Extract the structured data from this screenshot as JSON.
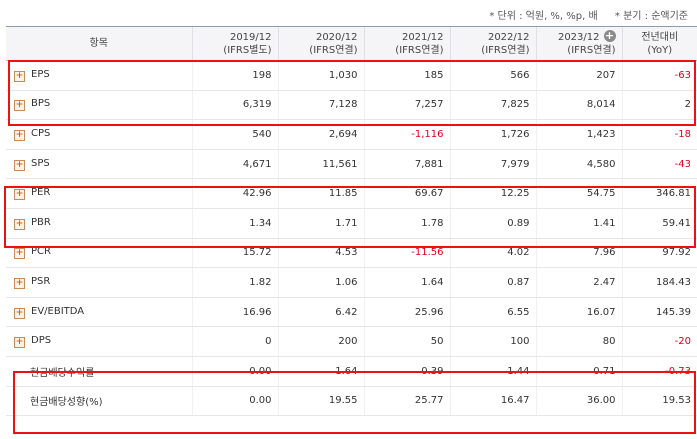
{
  "notes": {
    "unit": "* 단위 : 억원, %, %p, 배",
    "period": "* 분기 : 순액기준"
  },
  "header": {
    "item": "항목",
    "cols": [
      {
        "year": "2019/12",
        "basis": "(IFRS별도)"
      },
      {
        "year": "2020/12",
        "basis": "(IFRS연결)"
      },
      {
        "year": "2021/12",
        "basis": "(IFRS연결)"
      },
      {
        "year": "2022/12",
        "basis": "(IFRS연결)"
      },
      {
        "year": "2023/12",
        "basis": "(IFRS연결)"
      }
    ],
    "yoy_line1": "전년대비",
    "yoy_line2": "(YoY)",
    "expand_icon": "circle-plus-icon"
  },
  "rows": [
    {
      "label": "EPS",
      "expandable": true,
      "values": [
        "198",
        "1,030",
        "185",
        "566",
        "207"
      ],
      "yoy": "-63"
    },
    {
      "label": "BPS",
      "expandable": true,
      "values": [
        "6,319",
        "7,128",
        "7,257",
        "7,825",
        "8,014"
      ],
      "yoy": "2"
    },
    {
      "label": "CPS",
      "expandable": true,
      "values": [
        "540",
        "2,694",
        "-1,116",
        "1,726",
        "1,423"
      ],
      "yoy": "-18"
    },
    {
      "label": "SPS",
      "expandable": true,
      "values": [
        "4,671",
        "11,561",
        "7,881",
        "7,979",
        "4,580"
      ],
      "yoy": "-43"
    },
    {
      "label": "PER",
      "expandable": true,
      "values": [
        "42.96",
        "11.85",
        "69.67",
        "12.25",
        "54.75"
      ],
      "yoy": "346.81"
    },
    {
      "label": "PBR",
      "expandable": true,
      "values": [
        "1.34",
        "1.71",
        "1.78",
        "0.89",
        "1.41"
      ],
      "yoy": "59.41"
    },
    {
      "label": "PCR",
      "expandable": true,
      "values": [
        "15.72",
        "4.53",
        "-11.56",
        "4.02",
        "7.96"
      ],
      "yoy": "97.92"
    },
    {
      "label": "PSR",
      "expandable": true,
      "values": [
        "1.82",
        "1.06",
        "1.64",
        "0.87",
        "2.47"
      ],
      "yoy": "184.43"
    },
    {
      "label": "EV/EBITDA",
      "expandable": true,
      "values": [
        "16.96",
        "6.42",
        "25.96",
        "6.55",
        "16.07"
      ],
      "yoy": "145.39"
    },
    {
      "label": "DPS",
      "expandable": true,
      "values": [
        "0",
        "200",
        "50",
        "100",
        "80"
      ],
      "yoy": "-20"
    },
    {
      "label": "현금배당수익률",
      "expandable": false,
      "values": [
        "0.00",
        "1.64",
        "0.39",
        "1.44",
        "0.71"
      ],
      "yoy": "-0.73"
    },
    {
      "label": "현금배당성향(%)",
      "expandable": false,
      "values": [
        "0.00",
        "19.55",
        "25.77",
        "16.47",
        "36.00"
      ],
      "yoy": "19.53"
    }
  ],
  "colors": {
    "negative": "#e2001a",
    "highlight": "#ee1111",
    "header_bg": "#f5f5f7"
  }
}
